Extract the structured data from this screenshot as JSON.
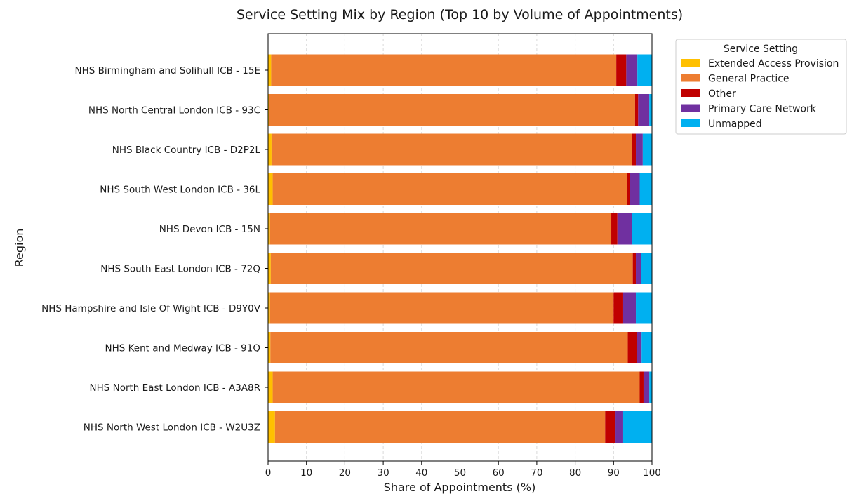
{
  "chart_data": {
    "type": "bar",
    "orientation": "horizontal",
    "stacked": true,
    "title": "Service Setting Mix by Region (Top 10 by Volume of Appointments)",
    "xlabel": "Share of Appointments (%)",
    "ylabel": "Region",
    "xlim": [
      0,
      100
    ],
    "xticks": [
      "0",
      "10",
      "20",
      "30",
      "40",
      "50",
      "60",
      "70",
      "80",
      "90",
      "100"
    ],
    "grid": "vertical dashed",
    "legend_title": "Service Setting",
    "legend_position": "outside top-right",
    "categories": [
      "NHS Birmingham and Solihull ICB - 15E",
      "NHS North Central London ICB - 93C",
      "NHS Black Country ICB - D2P2L",
      "NHS South West London ICB - 36L",
      "NHS Devon ICB - 15N",
      "NHS South East London ICB - 72Q",
      "NHS Hampshire and Isle Of Wight ICB - D9Y0V",
      "NHS Kent and Medway ICB - 91Q",
      "NHS North East London ICB - A3A8R",
      "NHS North West London ICB - W2U3Z"
    ],
    "series": [
      {
        "name": "Extended Access Provision",
        "color": "#ffc000",
        "values": [
          0.8,
          0.2,
          0.9,
          1.2,
          0.5,
          0.7,
          0.5,
          0.6,
          1.2,
          1.8
        ]
      },
      {
        "name": "General Practice",
        "color": "#ed7d31",
        "values": [
          89.9,
          95.4,
          93.8,
          92.4,
          88.9,
          94.3,
          89.5,
          93.1,
          95.6,
          86.0
        ]
      },
      {
        "name": "Other",
        "color": "#c00000",
        "values": [
          2.6,
          0.8,
          1.1,
          0.6,
          1.6,
          0.8,
          2.5,
          2.3,
          1.0,
          2.7
        ]
      },
      {
        "name": "Primary Care Network",
        "color": "#7030a0",
        "values": [
          2.9,
          2.9,
          1.8,
          2.6,
          3.8,
          1.3,
          3.3,
          1.3,
          1.5,
          2.0
        ]
      },
      {
        "name": "Unmapped",
        "color": "#00b0f0",
        "values": [
          3.8,
          0.7,
          2.4,
          3.2,
          5.2,
          2.9,
          4.2,
          2.7,
          0.7,
          7.5
        ]
      }
    ]
  }
}
